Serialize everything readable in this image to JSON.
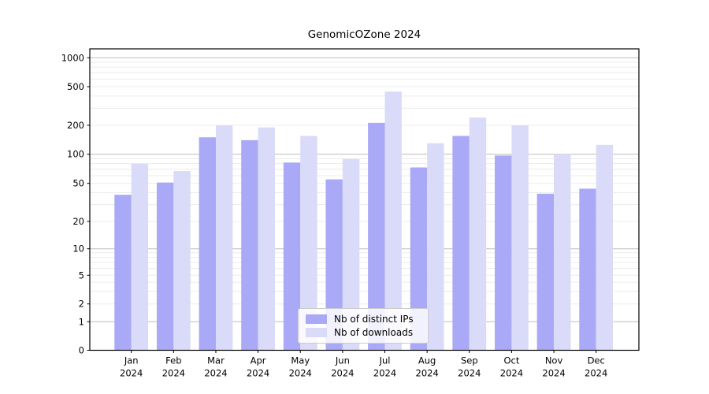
{
  "title": "GenomicOZone 2024",
  "chart_data": {
    "type": "bar",
    "title": "GenomicOZone 2024",
    "categories": [
      "Jan 2024",
      "Feb 2024",
      "Mar 2024",
      "Apr 2024",
      "May 2024",
      "Jun 2024",
      "Jul 2024",
      "Aug 2024",
      "Sep 2024",
      "Oct 2024",
      "Nov 2024",
      "Dec 2024"
    ],
    "series": [
      {
        "name": "Nb of distinct IPs",
        "color": "#a9a9f7",
        "values": [
          38,
          51,
          150,
          140,
          82,
          55,
          212,
          73,
          155,
          97,
          39,
          44
        ]
      },
      {
        "name": "Nb of downloads",
        "color": "#dadaf9",
        "values": [
          80,
          67,
          200,
          190,
          155,
          89,
          445,
          130,
          240,
          200,
          100,
          125
        ]
      }
    ],
    "xlabel": "",
    "ylabel": "",
    "yscale": "symlog",
    "ylim": [
      0,
      1000
    ],
    "yticks": [
      0,
      1,
      2,
      5,
      10,
      20,
      50,
      100,
      200,
      500,
      1000
    ],
    "grid": "on",
    "legend_position": "lower center",
    "colors": {
      "grid_major": "#bdbdbd",
      "grid_minor": "#ececec",
      "axis": "#000000",
      "background": "#ffffff"
    }
  }
}
